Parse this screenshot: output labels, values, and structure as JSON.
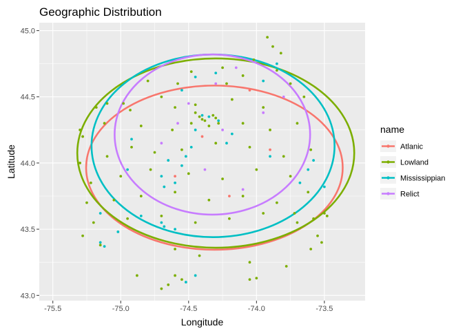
{
  "chart_data": {
    "type": "scatter",
    "title": "Geographic Distribution",
    "xlabel": "Longitude",
    "ylabel": "Latitude",
    "xlim": [
      -75.6,
      -73.2
    ],
    "ylim": [
      42.96,
      45.06
    ],
    "x_ticks": [
      -75.5,
      -75.0,
      -74.5,
      -74.0,
      -73.5
    ],
    "x_tick_labels": [
      "-75.5",
      "-75.0",
      "-74.5",
      "-74.0",
      "-73.5"
    ],
    "y_ticks": [
      43.0,
      43.5,
      44.0,
      44.5,
      45.0
    ],
    "y_tick_labels": [
      "43.0",
      "43.5",
      "44.0",
      "44.5",
      "45.0"
    ],
    "grid": true,
    "legend": {
      "title": "name",
      "placement": "right"
    },
    "series": [
      {
        "name": "Atlanic",
        "color": "#F8766D",
        "ellipse": {
          "cx": -74.31,
          "cy": 43.965,
          "rx": 0.945,
          "ry": 0.62
        },
        "points": [
          [
            -74.05,
            44.55
          ],
          [
            -74.6,
            43.9
          ],
          [
            -74.2,
            43.75
          ],
          [
            -73.9,
            44.1
          ],
          [
            -74.4,
            44.2
          ]
        ]
      },
      {
        "name": "Lowland",
        "color": "#7CAE00",
        "ellipse": {
          "cx": -74.3,
          "cy": 44.075,
          "rx": 1.02,
          "ry": 0.715
        },
        "points": [
          [
            -73.92,
            44.95
          ],
          [
            -73.82,
            44.83
          ],
          [
            -73.88,
            44.88
          ],
          [
            -74.02,
            44.78
          ],
          [
            -74.25,
            44.72
          ],
          [
            -74.48,
            44.69
          ],
          [
            -74.8,
            44.62
          ],
          [
            -74.58,
            44.6
          ],
          [
            -74.1,
            44.66
          ],
          [
            -73.75,
            44.6
          ],
          [
            -75.1,
            44.45
          ],
          [
            -74.93,
            44.4
          ],
          [
            -74.7,
            44.5
          ],
          [
            -74.45,
            44.44
          ],
          [
            -74.18,
            44.48
          ],
          [
            -73.95,
            44.42
          ],
          [
            -73.65,
            44.5
          ],
          [
            -75.28,
            44.2
          ],
          [
            -75.12,
            44.3
          ],
          [
            -74.85,
            44.28
          ],
          [
            -74.62,
            44.25
          ],
          [
            -74.48,
            44.3
          ],
          [
            -74.42,
            44.35
          ],
          [
            -74.38,
            44.32
          ],
          [
            -74.32,
            44.36
          ],
          [
            -74.28,
            44.3
          ],
          [
            -74.35,
            44.28
          ],
          [
            -74.4,
            44.33
          ],
          [
            -74.3,
            44.34
          ],
          [
            -74.45,
            44.38
          ],
          [
            -74.1,
            44.3
          ],
          [
            -73.9,
            44.25
          ],
          [
            -73.7,
            44.3
          ],
          [
            -75.3,
            44.0
          ],
          [
            -75.1,
            44.05
          ],
          [
            -74.92,
            44.12
          ],
          [
            -74.75,
            44.08
          ],
          [
            -74.55,
            44.1
          ],
          [
            -74.3,
            44.15
          ],
          [
            -74.05,
            44.12
          ],
          [
            -73.8,
            44.05
          ],
          [
            -73.6,
            44.1
          ],
          [
            -75.22,
            43.85
          ],
          [
            -75.0,
            43.9
          ],
          [
            -74.78,
            43.95
          ],
          [
            -74.5,
            43.92
          ],
          [
            -74.25,
            43.88
          ],
          [
            -74.0,
            43.95
          ],
          [
            -73.75,
            43.9
          ],
          [
            -75.25,
            43.7
          ],
          [
            -75.05,
            43.72
          ],
          [
            -74.85,
            43.75
          ],
          [
            -74.6,
            43.78
          ],
          [
            -74.35,
            43.72
          ],
          [
            -74.1,
            43.75
          ],
          [
            -73.85,
            43.7
          ],
          [
            -73.62,
            43.78
          ],
          [
            -75.2,
            43.55
          ],
          [
            -74.95,
            43.58
          ],
          [
            -74.7,
            43.6
          ],
          [
            -74.45,
            43.55
          ],
          [
            -74.2,
            43.58
          ],
          [
            -73.95,
            43.62
          ],
          [
            -73.7,
            43.55
          ],
          [
            -73.5,
            43.62
          ],
          [
            -73.55,
            43.45
          ],
          [
            -73.52,
            43.4
          ],
          [
            -73.6,
            43.35
          ],
          [
            -75.28,
            43.45
          ],
          [
            -75.15,
            43.38
          ],
          [
            -74.6,
            43.35
          ],
          [
            -74.42,
            43.3
          ],
          [
            -74.6,
            43.15
          ],
          [
            -74.65,
            43.08
          ],
          [
            -74.88,
            43.15
          ],
          [
            -74.7,
            43.05
          ],
          [
            -74.55,
            43.12
          ],
          [
            -74.05,
            43.25
          ],
          [
            -74.05,
            43.12
          ],
          [
            -74.0,
            43.13
          ],
          [
            -73.78,
            43.22
          ],
          [
            -73.72,
            43.62
          ],
          [
            -73.48,
            43.6
          ],
          [
            -73.58,
            43.58
          ],
          [
            -75.3,
            44.25
          ],
          [
            -75.18,
            44.42
          ],
          [
            -74.98,
            44.45
          ],
          [
            -74.22,
            44.6
          ],
          [
            -74.6,
            44.42
          ],
          [
            -73.85,
            44.7
          ]
        ]
      },
      {
        "name": "Mississippian",
        "color": "#00BFC4",
        "ellipse": {
          "cx": -74.32,
          "cy": 44.13,
          "rx": 0.895,
          "ry": 0.69
        },
        "points": [
          [
            -73.85,
            44.75
          ],
          [
            -74.3,
            44.68
          ],
          [
            -74.45,
            44.65
          ],
          [
            -73.95,
            44.62
          ],
          [
            -74.55,
            44.55
          ],
          [
            -74.35,
            44.35
          ],
          [
            -74.4,
            44.36
          ],
          [
            -74.28,
            44.32
          ],
          [
            -74.48,
            44.12
          ],
          [
            -74.52,
            44.05
          ],
          [
            -74.65,
            44.02
          ],
          [
            -74.55,
            43.98
          ],
          [
            -74.6,
            43.85
          ],
          [
            -74.68,
            43.82
          ],
          [
            -74.7,
            43.9
          ],
          [
            -74.95,
            43.95
          ],
          [
            -74.85,
            43.6
          ],
          [
            -74.7,
            43.55
          ],
          [
            -74.68,
            43.52
          ],
          [
            -74.6,
            43.5
          ],
          [
            -75.02,
            43.48
          ],
          [
            -75.15,
            43.4
          ],
          [
            -75.12,
            43.37
          ],
          [
            -74.45,
            43.15
          ],
          [
            -74.52,
            43.1
          ],
          [
            -73.68,
            43.85
          ],
          [
            -73.62,
            43.95
          ],
          [
            -73.58,
            44.02
          ],
          [
            -73.9,
            44.05
          ],
          [
            -73.5,
            43.82
          ],
          [
            -74.18,
            44.22
          ],
          [
            -74.22,
            44.15
          ],
          [
            -74.45,
            44.25
          ],
          [
            -75.15,
            43.62
          ],
          [
            -74.92,
            44.18
          ]
        ]
      },
      {
        "name": "Relict",
        "color": "#C77CFF",
        "ellipse": {
          "cx": -74.325,
          "cy": 44.215,
          "rx": 0.72,
          "ry": 0.605
        },
        "points": [
          [
            -74.15,
            44.72
          ],
          [
            -74.3,
            44.6
          ],
          [
            -74.5,
            44.45
          ],
          [
            -73.95,
            44.38
          ],
          [
            -74.25,
            44.25
          ],
          [
            -74.7,
            44.15
          ],
          [
            -74.38,
            43.95
          ],
          [
            -74.1,
            43.8
          ],
          [
            -73.8,
            44.5
          ],
          [
            -74.58,
            44.3
          ]
        ]
      }
    ]
  }
}
